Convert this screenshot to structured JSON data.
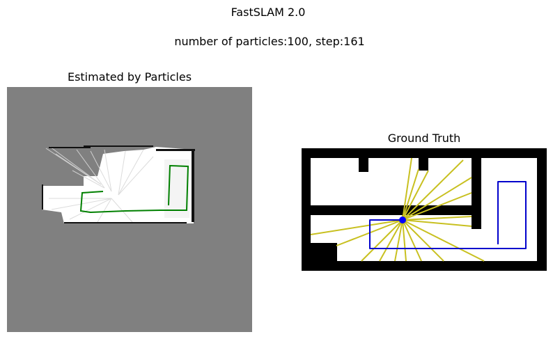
{
  "figure": {
    "title": "FastSLAM 2.0",
    "subtitle": "number of particles:100, step:161"
  },
  "left_panel": {
    "title": "Estimated by Particles",
    "background_color": "#808080",
    "free_space_color": "#ffffff",
    "obstacle_color": "#000000",
    "path_color": "#008000"
  },
  "right_panel": {
    "title": "Ground Truth",
    "wall_color": "#000000",
    "free_space_color": "#ffffff",
    "path_color": "#0000cc",
    "laser_color": "#c8c020",
    "robot_color": "#0000ff"
  }
}
